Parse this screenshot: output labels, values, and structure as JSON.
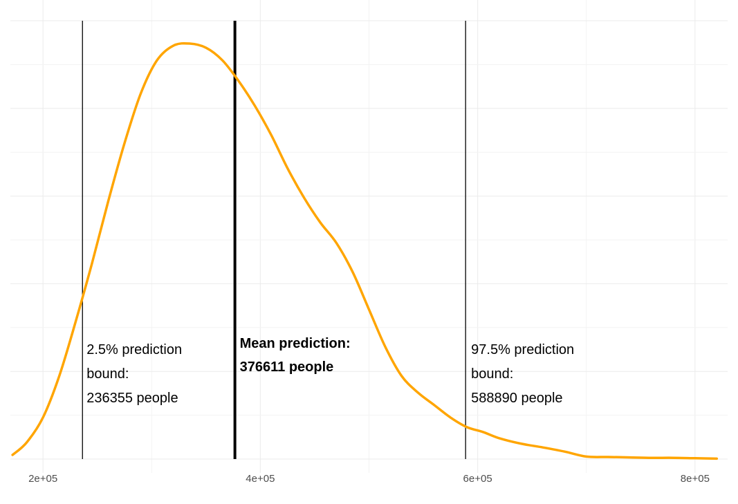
{
  "chart_data": {
    "type": "line",
    "title": "",
    "xlabel": "",
    "ylabel": "",
    "xlim": [
      170000,
      830000
    ],
    "ylim": [
      0,
      1
    ],
    "grid": true,
    "x_ticks": [
      200000,
      400000,
      600000,
      800000
    ],
    "x_tick_labels": [
      "2e+05",
      "4e+05",
      "6e+05",
      "8e+05"
    ],
    "series": [
      {
        "color": "#FFA500",
        "x": [
          172000,
          185000,
          200000,
          215000,
          230000,
          245000,
          260000,
          275000,
          290000,
          305000,
          320000,
          335000,
          350000,
          365000,
          380000,
          395000,
          410000,
          425000,
          440000,
          455000,
          470000,
          485000,
          500000,
          515000,
          530000,
          545000,
          560000,
          575000,
          590000,
          605000,
          620000,
          640000,
          660000,
          680000,
          700000,
          720000,
          740000,
          760000,
          780000,
          800000,
          820000
        ],
        "y": [
          0.01,
          0.04,
          0.1,
          0.2,
          0.33,
          0.47,
          0.62,
          0.76,
          0.88,
          0.96,
          0.995,
          1.0,
          0.99,
          0.96,
          0.91,
          0.85,
          0.78,
          0.7,
          0.63,
          0.57,
          0.52,
          0.45,
          0.36,
          0.27,
          0.2,
          0.16,
          0.13,
          0.1,
          0.077,
          0.065,
          0.05,
          0.037,
          0.028,
          0.018,
          0.006,
          0.005,
          0.004,
          0.003,
          0.003,
          0.002,
          0.001
        ]
      }
    ],
    "vlines": [
      {
        "x": 236355,
        "width": "thin"
      },
      {
        "x": 376611,
        "width": "thick"
      },
      {
        "x": 588890,
        "width": "thin"
      }
    ],
    "annotations": [
      {
        "lines": [
          "2.5% prediction",
          "bound:",
          "236355 people"
        ],
        "bold": false
      },
      {
        "lines": [
          "Mean prediction:",
          "376611 people"
        ],
        "bold": true
      },
      {
        "lines": [
          "97.5% prediction",
          "bound:",
          "588890 people"
        ],
        "bold": false
      }
    ]
  }
}
